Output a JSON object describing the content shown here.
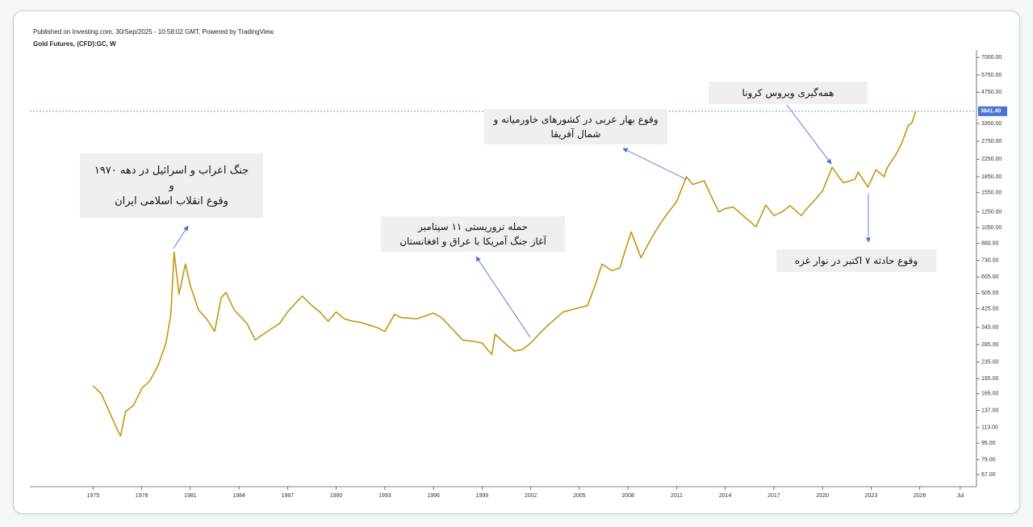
{
  "chart_data": {
    "type": "line",
    "title": "Gold Futures, (CFD):GC, W",
    "subtitle": "Published on Investing.com, 30/Sep/2025 - 10:58:02 GMT, Powered by TradingView.",
    "yscale": "log",
    "grid": false,
    "xlim": [
      1971.1,
      2029.5
    ],
    "xticks": [
      1975,
      1978,
      1981,
      1984,
      1987,
      1990,
      1993,
      1996,
      1999,
      2002,
      2005,
      2008,
      2011,
      2014,
      2017,
      2020,
      2023,
      2026,
      {
        "value": 2028.5,
        "label": "Jul"
      }
    ],
    "ylim": [
      58.5,
      7600
    ],
    "yticks": [
      {
        "value": 67,
        "label": "67.00"
      },
      {
        "value": 79,
        "label": "79.00"
      },
      {
        "value": 95,
        "label": "95.00"
      },
      {
        "value": 113,
        "label": "113.00"
      },
      {
        "value": 137,
        "label": "137.00"
      },
      {
        "value": 165,
        "label": "165.00"
      },
      {
        "value": 195,
        "label": "195.00"
      },
      {
        "value": 235,
        "label": "235.00"
      },
      {
        "value": 285,
        "label": "285.00"
      },
      {
        "value": 345,
        "label": "345.00"
      },
      {
        "value": 425,
        "label": "425.00"
      },
      {
        "value": 505,
        "label": "505.00"
      },
      {
        "value": 605,
        "label": "605.00"
      },
      {
        "value": 730,
        "label": "730.00"
      },
      {
        "value": 880,
        "label": "880.00"
      },
      {
        "value": 1050,
        "label": "1050.00"
      },
      {
        "value": 1250,
        "label": "1250.00"
      },
      {
        "value": 1550,
        "label": "1550.00"
      },
      {
        "value": 1850,
        "label": "1850.00"
      },
      {
        "value": 2250,
        "label": "2250.00"
      },
      {
        "value": 2750,
        "label": "2750.00"
      },
      {
        "value": 3350,
        "label": "3350.00"
      },
      {
        "value": 4750,
        "label": "4750.00"
      },
      {
        "value": 5750,
        "label": "5750.00"
      },
      {
        "value": 7000,
        "label": "7000.00"
      }
    ],
    "price_line": {
      "value": 3841.4,
      "label": "3841.40",
      "color": "#4a72d6"
    },
    "x": [
      1975.0,
      1975.5,
      1976.0,
      1976.5,
      1976.7,
      1977.0,
      1977.5,
      1978.0,
      1978.5,
      1979.0,
      1979.5,
      1979.8,
      1980.0,
      1980.3,
      1980.7,
      1981.0,
      1981.5,
      1982.0,
      1982.5,
      1982.9,
      1983.2,
      1983.7,
      1984.5,
      1985.0,
      1985.5,
      1986.0,
      1986.5,
      1987.0,
      1987.9,
      1988.5,
      1989.0,
      1989.5,
      1990.0,
      1990.5,
      1991.0,
      1991.5,
      1992.0,
      1992.5,
      1993.0,
      1993.6,
      1994.0,
      1995.0,
      1996.0,
      1996.5,
      1997.0,
      1997.8,
      1998.5,
      1999.0,
      1999.6,
      1999.8,
      2000.5,
      2001.0,
      2001.5,
      2002.0,
      2002.5,
      2003.0,
      2004.0,
      2005.0,
      2005.5,
      2006.0,
      2006.4,
      2007.0,
      2007.5,
      2008.0,
      2008.2,
      2008.8,
      2009.5,
      2010.0,
      2010.5,
      2011.0,
      2011.6,
      2012.0,
      2012.7,
      2013.3,
      2013.6,
      2014.0,
      2014.5,
      2015.0,
      2015.9,
      2016.5,
      2017.0,
      2017.5,
      2018.0,
      2018.7,
      2019.0,
      2019.5,
      2020.0,
      2020.6,
      2021.0,
      2021.3,
      2022.0,
      2022.2,
      2022.8,
      2023.3,
      2023.8,
      2024.0,
      2024.5,
      2024.9,
      2025.3,
      2025.5,
      2025.75
    ],
    "series": [
      {
        "name": "Gold Futures",
        "color": "#c8950f",
        "values": [
          180,
          165,
          135,
          110,
          103,
          135,
          145,
          175,
          190,
          225,
          290,
          400,
          800,
          500,
          700,
          550,
          420,
          380,
          330,
          480,
          510,
          420,
          360,
          300,
          320,
          340,
          360,
          410,
          490,
          440,
          410,
          370,
          410,
          380,
          370,
          365,
          355,
          345,
          330,
          400,
          385,
          380,
          405,
          385,
          350,
          300,
          295,
          290,
          255,
          320,
          285,
          265,
          270,
          290,
          320,
          350,
          410,
          430,
          440,
          560,
          700,
          650,
          670,
          900,
          1000,
          750,
          950,
          1100,
          1250,
          1400,
          1850,
          1700,
          1770,
          1400,
          1250,
          1300,
          1320,
          1220,
          1060,
          1350,
          1200,
          1250,
          1340,
          1200,
          1290,
          1420,
          1580,
          2060,
          1850,
          1730,
          1800,
          1950,
          1650,
          2000,
          1850,
          2050,
          2350,
          2700,
          3300,
          3350,
          3841.4
        ]
      }
    ],
    "annotations": [
      {
        "lines": [
          "جنگ اعراب و اسرائیل در دهه ۱۹۷۰",
          "و",
          "وقوع انقلاب اسلامی ایران"
        ]
      },
      {
        "lines": [
          "حمله تروریستی ۱۱ سپتامبر",
          "آغاز جنگ آمریکا با عراق و افغانستان"
        ]
      },
      {
        "lines": [
          "وقوع بهار عربی در کشورهای خاورمیانه و",
          "شمال آفریقا"
        ]
      },
      {
        "lines": [
          "همه‌گیری ویروس کرونا"
        ]
      },
      {
        "lines": [
          "وقوع حادثه ۷ اکتبر در نوار غزه"
        ]
      }
    ]
  }
}
